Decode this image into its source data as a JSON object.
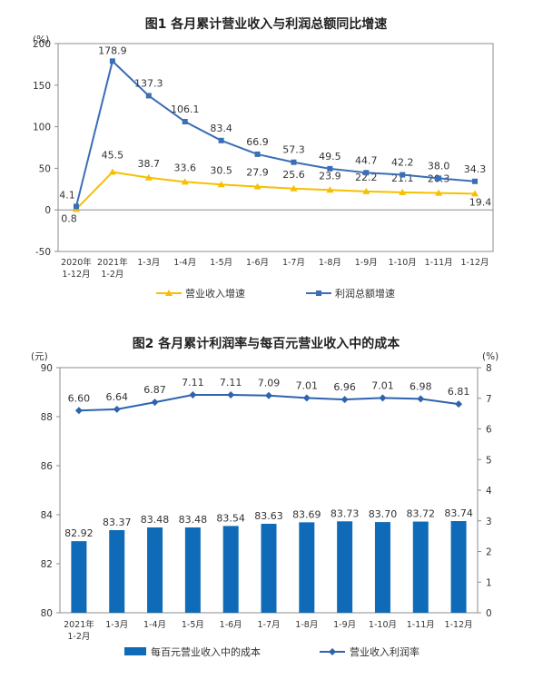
{
  "chart_data": [
    {
      "type": "line",
      "title": "图1  各月累计营业收入与利润总额同比增速",
      "unit": "(%)",
      "ylim": [
        -50,
        200
      ],
      "yticks": [
        200,
        150,
        100,
        50,
        0,
        -50
      ],
      "categories": [
        [
          "2020年",
          "1-12月"
        ],
        [
          "2021年",
          "1-2月"
        ],
        [
          "1-3月"
        ],
        [
          "1-4月"
        ],
        [
          "1-5月"
        ],
        [
          "1-6月"
        ],
        [
          "1-7月"
        ],
        [
          "1-8月"
        ],
        [
          "1-9月"
        ],
        [
          "1-10月"
        ],
        [
          "1-11月"
        ],
        [
          "1-12月"
        ]
      ],
      "series": [
        {
          "name": "营业收入增速",
          "color": "#F5C000",
          "marker": "triangle",
          "values": [
            0.8,
            45.5,
            38.7,
            33.6,
            30.5,
            27.9,
            25.6,
            23.9,
            22.2,
            21.1,
            20.3,
            19.4
          ],
          "labels": [
            "0.8",
            "45.5",
            "38.7",
            "33.6",
            "30.5",
            "27.9",
            "25.6",
            "23.9",
            "22.2",
            "21.1",
            "20.3",
            "19.4"
          ]
        },
        {
          "name": "利润总额增速",
          "color": "#3A6EB5",
          "marker": "square",
          "values": [
            4.1,
            178.9,
            137.3,
            106.1,
            83.4,
            66.9,
            57.3,
            49.5,
            44.7,
            42.2,
            38.0,
            34.3
          ],
          "labels": [
            "4.1",
            "178.9",
            "137.3",
            "106.1",
            "83.4",
            "66.9",
            "57.3",
            "49.5",
            "44.7",
            "42.2",
            "38.0",
            "34.3"
          ]
        }
      ],
      "legend_position": "bottom",
      "grid": false
    },
    {
      "type": "bar+line",
      "title": "图2  各月累计利润率与每百元营业收入中的成本",
      "left_unit": "(元)",
      "right_unit": "(%)",
      "ylim_left": [
        80,
        90
      ],
      "yticks_left": [
        90,
        88,
        86,
        84,
        82,
        80
      ],
      "ylim_right": [
        0,
        8
      ],
      "yticks_right": [
        8,
        7,
        6,
        5,
        4,
        3,
        2,
        1,
        0
      ],
      "categories": [
        [
          "2021年",
          "1-2月"
        ],
        [
          "1-3月"
        ],
        [
          "1-4月"
        ],
        [
          "1-5月"
        ],
        [
          "1-6月"
        ],
        [
          "1-7月"
        ],
        [
          "1-8月"
        ],
        [
          "1-9月"
        ],
        [
          "1-10月"
        ],
        [
          "1-11月"
        ],
        [
          "1-12月"
        ]
      ],
      "series": [
        {
          "name": "每百元营业收入中的成本",
          "kind": "bar",
          "axis": "left",
          "color": "#0F6BB7",
          "values": [
            82.92,
            83.37,
            83.48,
            83.48,
            83.54,
            83.63,
            83.69,
            83.73,
            83.7,
            83.72,
            83.74
          ],
          "labels": [
            "82.92",
            "83.37",
            "83.48",
            "83.48",
            "83.54",
            "83.63",
            "83.69",
            "83.73",
            "83.70",
            "83.72",
            "83.74"
          ]
        },
        {
          "name": "营业收入利润率",
          "kind": "line",
          "axis": "right",
          "color": "#2E63AE",
          "marker": "diamond",
          "values": [
            6.6,
            6.64,
            6.87,
            7.11,
            7.11,
            7.09,
            7.01,
            6.96,
            7.01,
            6.98,
            6.81
          ],
          "labels": [
            "6.60",
            "6.64",
            "6.87",
            "7.11",
            "7.11",
            "7.09",
            "7.01",
            "6.96",
            "7.01",
            "6.98",
            "6.81"
          ]
        }
      ],
      "legend_position": "bottom",
      "grid": false
    }
  ]
}
